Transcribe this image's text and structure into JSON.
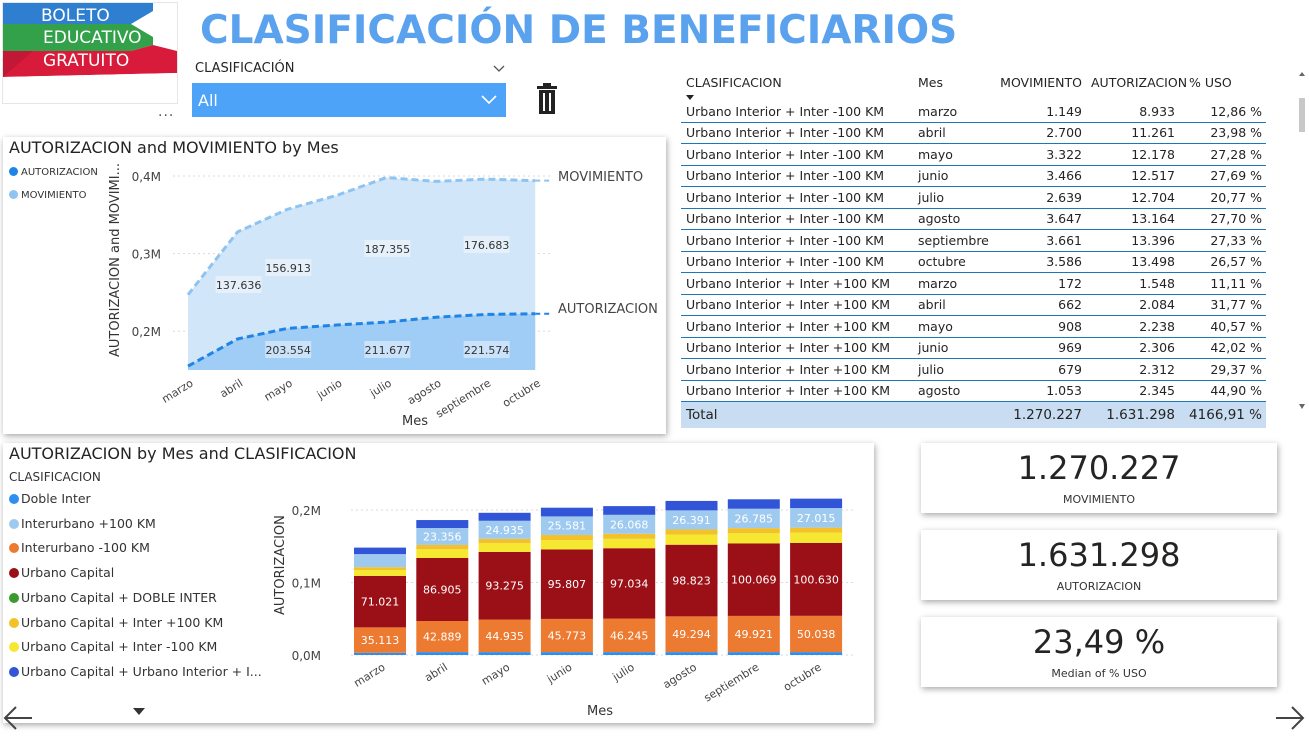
{
  "logo": {
    "line1": "BOLETO",
    "line2": "EDUCATIVO",
    "line3": "GRATUITO"
  },
  "more_label": "...",
  "title": "CLASIFICACIÓN DE BENEFICIARIOS",
  "slicer": {
    "label": "CLASIFICACIÓN",
    "value": "All"
  },
  "chart1": {
    "title": "AUTORIZACION and MOVIMIENTO by Mes",
    "legend": [
      {
        "name": "AUTORIZACION",
        "color": "#1f84e6"
      },
      {
        "name": "MOVIMIENTO",
        "color": "#8fc3f0"
      }
    ],
    "ylabel": "AUTORIZACION and MOVIMI...",
    "xlabel": "Mes",
    "yticks": [
      "0,4M",
      "0,3M",
      "0,2M"
    ],
    "series_labels": [
      "MOVIMIENTO",
      "AUTORIZACION"
    ]
  },
  "chart2": {
    "title": "AUTORIZACION by Mes and CLASIFICACION",
    "legend_title": "CLASIFICACION",
    "legend": [
      {
        "name": "Doble Inter",
        "color": "#2f8ff0"
      },
      {
        "name": "Interurbano +100 KM",
        "color": "#9fcaf0"
      },
      {
        "name": "Interurbano -100 KM",
        "color": "#ec7a30"
      },
      {
        "name": "Urbano Capital",
        "color": "#9b0f17"
      },
      {
        "name": "Urbano Capital + DOBLE INTER",
        "color": "#3a9a2c"
      },
      {
        "name": "Urbano Capital + Inter +100 KM",
        "color": "#f3c12a"
      },
      {
        "name": "Urbano Capital + Inter -100 KM",
        "color": "#f6e830"
      },
      {
        "name": "Urbano Capital + Urbano Interior + I...",
        "color": "#3155d6"
      }
    ],
    "ylabel": "AUTORIZACION",
    "xlabel": "Mes",
    "yticks": [
      "0,2M",
      "0,1M",
      "0,0M"
    ]
  },
  "chart_data": [
    {
      "type": "area",
      "title": "AUTORIZACION and MOVIMIENTO by Mes",
      "xlabel": "Mes",
      "ylabel": "AUTORIZACION and MOVIMI...",
      "categories": [
        "marzo",
        "abril",
        "mayo",
        "junio",
        "julio",
        "agosto",
        "septiembre",
        "octubre"
      ],
      "ylim": [
        0.15,
        0.4
      ],
      "series": [
        {
          "name": "MOVIMIENTO",
          "values": [
            0.247,
            0.328,
            0.357,
            0.375,
            0.398,
            0.393,
            0.396,
            0.394
          ],
          "labels": [
            "",
            "137.636",
            "156.913",
            "",
            "187.355",
            "",
            "176.683",
            ""
          ]
        },
        {
          "name": "AUTORIZACION",
          "values": [
            0.155,
            0.19,
            0.2036,
            0.208,
            0.2117,
            0.218,
            0.2216,
            0.2225
          ],
          "labels": [
            "",
            "",
            "203.554",
            "",
            "211.677",
            "",
            "221.574",
            ""
          ]
        }
      ],
      "grid": true,
      "legend": "top-left"
    },
    {
      "type": "bar",
      "title": "AUTORIZACION by Mes and CLASIFICACION",
      "xlabel": "Mes",
      "ylabel": "AUTORIZACION",
      "categories": [
        "marzo",
        "abril",
        "mayo",
        "junio",
        "julio",
        "agosto",
        "septiembre",
        "octubre"
      ],
      "ylim": [
        0,
        0.22
      ],
      "series": [
        {
          "name": "Doble Inter",
          "values": [
            0.003,
            0.004,
            0.004,
            0.004,
            0.004,
            0.004,
            0.004,
            0.004
          ],
          "labels": [
            "",
            "",
            "",
            "",
            "",
            "",
            "",
            ""
          ]
        },
        {
          "name": "Interurbano -100 KM",
          "values": [
            0.035113,
            0.042889,
            0.044935,
            0.045773,
            0.046245,
            0.049294,
            0.049921,
            0.050038
          ],
          "labels": [
            "35.113",
            "42.889",
            "44.935",
            "45.773",
            "46.245",
            "49.294",
            "49.921",
            "50.038"
          ]
        },
        {
          "name": "Urbano Capital",
          "values": [
            0.071021,
            0.086905,
            0.093275,
            0.095807,
            0.097034,
            0.098823,
            0.100069,
            0.10063
          ],
          "labels": [
            "71.021",
            "86.905",
            "93.275",
            "95.807",
            "97.034",
            "98.823",
            "100.069",
            "100.630"
          ]
        },
        {
          "name": "Urbano Capital + Inter -100 KM",
          "values": [
            0.008,
            0.012,
            0.012,
            0.013,
            0.013,
            0.014,
            0.014,
            0.014
          ],
          "labels": [
            "",
            "",
            "",
            "",
            "",
            "",
            "",
            ""
          ]
        },
        {
          "name": "Urbano Capital + Inter +100 KM",
          "values": [
            0.004,
            0.006,
            0.006,
            0.007,
            0.007,
            0.007,
            0.007,
            0.007
          ],
          "labels": [
            "",
            "",
            "",
            "",
            "",
            "",
            "",
            ""
          ]
        },
        {
          "name": "Interurbano +100 KM",
          "values": [
            0.018,
            0.023356,
            0.024935,
            0.025581,
            0.026068,
            0.026391,
            0.026785,
            0.027015
          ],
          "labels": [
            "",
            "23.356",
            "24.935",
            "25.581",
            "26.068",
            "26.391",
            "26.785",
            "27.015"
          ]
        },
        {
          "name": "Urbano Capital + Urbano Interior + I...",
          "values": [
            0.009,
            0.011,
            0.011,
            0.012,
            0.012,
            0.013,
            0.013,
            0.013
          ],
          "labels": [
            "",
            "",
            "",
            "",
            "",
            "",
            "",
            ""
          ]
        }
      ],
      "stacked": true,
      "legend": "left"
    }
  ],
  "table": {
    "headers": [
      "CLASIFICACION",
      "Mes",
      "MOVIMIENTO",
      "AUTORIZACION",
      "% USO"
    ],
    "rows": [
      [
        "Urbano Interior + Inter -100 KM",
        "marzo",
        "1.149",
        "8.933",
        "12,86 %"
      ],
      [
        "Urbano Interior + Inter -100 KM",
        "abril",
        "2.700",
        "11.261",
        "23,98 %"
      ],
      [
        "Urbano Interior + Inter -100 KM",
        "mayo",
        "3.322",
        "12.178",
        "27,28 %"
      ],
      [
        "Urbano Interior + Inter -100 KM",
        "junio",
        "3.466",
        "12.517",
        "27,69 %"
      ],
      [
        "Urbano Interior + Inter -100 KM",
        "julio",
        "2.639",
        "12.704",
        "20,77 %"
      ],
      [
        "Urbano Interior + Inter -100 KM",
        "agosto",
        "3.647",
        "13.164",
        "27,70 %"
      ],
      [
        "Urbano Interior + Inter -100 KM",
        "septiembre",
        "3.661",
        "13.396",
        "27,33 %"
      ],
      [
        "Urbano Interior + Inter -100 KM",
        "octubre",
        "3.586",
        "13.498",
        "26,57 %"
      ],
      [
        "Urbano Interior + Inter +100 KM",
        "marzo",
        "172",
        "1.548",
        "11,11 %"
      ],
      [
        "Urbano Interior + Inter +100 KM",
        "abril",
        "662",
        "2.084",
        "31,77 %"
      ],
      [
        "Urbano Interior + Inter +100 KM",
        "mayo",
        "908",
        "2.238",
        "40,57 %"
      ],
      [
        "Urbano Interior + Inter +100 KM",
        "junio",
        "969",
        "2.306",
        "42,02 %"
      ],
      [
        "Urbano Interior + Inter +100 KM",
        "julio",
        "679",
        "2.312",
        "29,37 %"
      ],
      [
        "Urbano Interior + Inter +100 KM",
        "agosto",
        "1.053",
        "2.345",
        "44,90 %"
      ]
    ],
    "total": [
      "Total",
      "",
      "1.270.227",
      "1.631.298",
      "4166,91 %"
    ]
  },
  "kpis": [
    {
      "value": "1.270.227",
      "label": "MOVIMIENTO"
    },
    {
      "value": "1.631.298",
      "label": "AUTORIZACION"
    },
    {
      "value": "23,49 %",
      "label": "Median of % USO"
    }
  ]
}
